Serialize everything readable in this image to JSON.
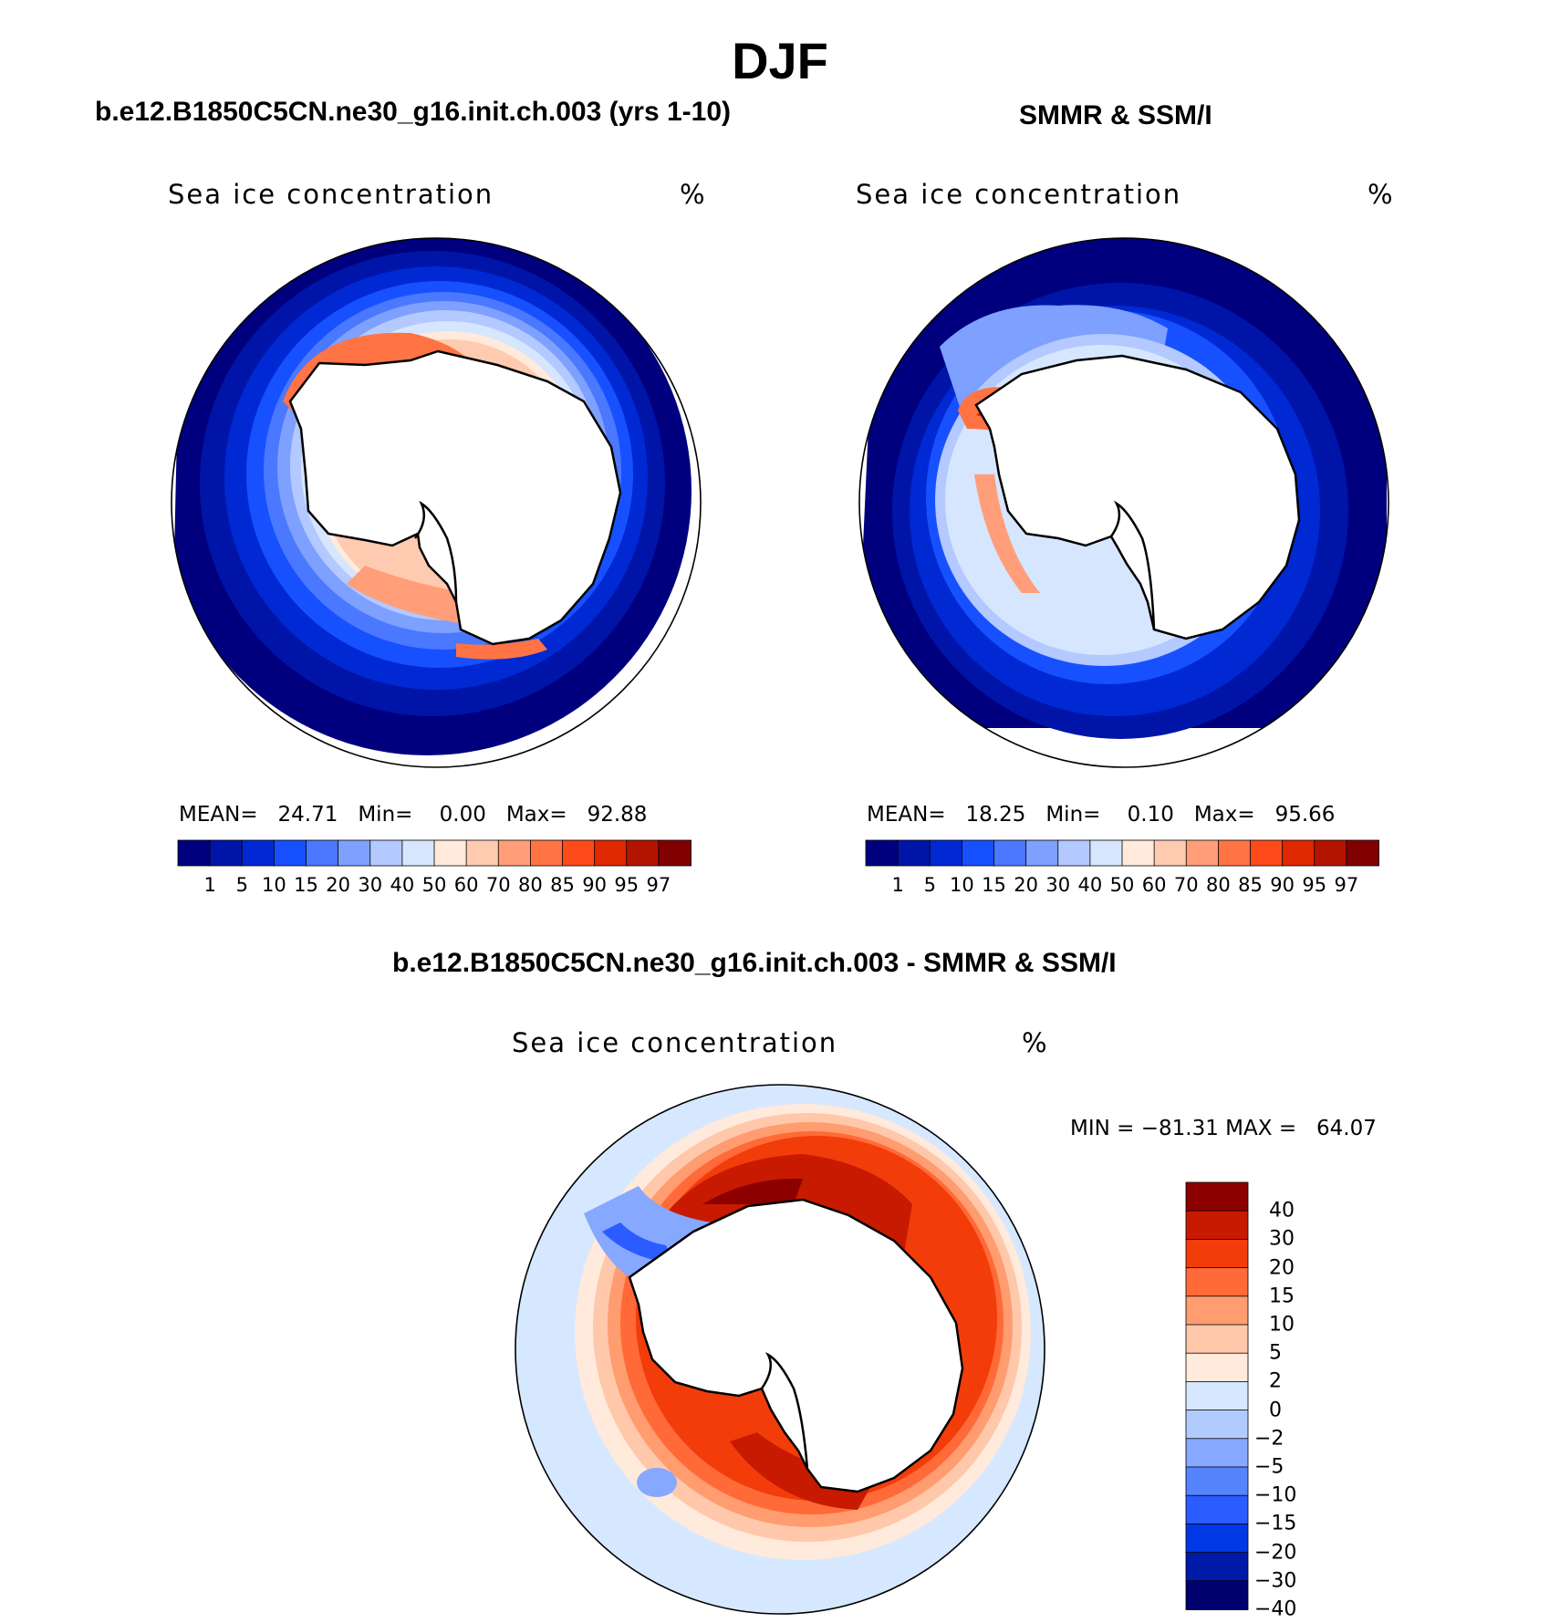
{
  "main_title": "DJF",
  "colors": {
    "seq": [
      "#00007f",
      "#0015a8",
      "#0029d4",
      "#1750ff",
      "#4a78ff",
      "#7ea0ff",
      "#b3c9ff",
      "#d6e6ff",
      "#ffeadc",
      "#ffcbb0",
      "#ff9e78",
      "#ff7345",
      "#ff4a1a",
      "#e02800",
      "#b31400",
      "#800000"
    ],
    "diff": [
      "#00006e",
      "#001aa8",
      "#0038e6",
      "#2a5cff",
      "#5684ff",
      "#86a8ff",
      "#b2cbff",
      "#d6e8ff",
      "#ffeadc",
      "#ffc8aa",
      "#ff9c70",
      "#ff6a38",
      "#f23c0a",
      "#c81a00",
      "#8c0000"
    ]
  },
  "chart_data": [
    {
      "type": "heatmap",
      "panel": "model",
      "title": "b.e12.B1850C5CN.ne30_g16.init.ch.003 (yrs 1-10)",
      "subtitle": "Sea ice concentration",
      "units": "%",
      "stats": {
        "mean_label": "MEAN=",
        "mean": "24.71",
        "min_label": "Min=",
        "min": "0.00",
        "max_label": "Max=",
        "max": "92.88"
      },
      "levels": [
        "1",
        "5",
        "10",
        "15",
        "20",
        "30",
        "40",
        "50",
        "60",
        "70",
        "80",
        "85",
        "90",
        "95",
        "97"
      ],
      "projection": "south polar stereographic"
    },
    {
      "type": "heatmap",
      "panel": "observations",
      "title": "SMMR & SSM/I",
      "subtitle": "Sea ice concentration",
      "units": "%",
      "stats": {
        "mean_label": "MEAN=",
        "mean": "18.25",
        "min_label": "Min=",
        "min": "0.10",
        "max_label": "Max=",
        "max": "95.66"
      },
      "levels": [
        "1",
        "5",
        "10",
        "15",
        "20",
        "30",
        "40",
        "50",
        "60",
        "70",
        "80",
        "85",
        "90",
        "95",
        "97"
      ],
      "projection": "south polar stereographic"
    },
    {
      "type": "heatmap",
      "panel": "difference",
      "title": "b.e12.B1850C5CN.ne30_g16.init.ch.003 - SMMR & SSM/I",
      "subtitle": "Sea ice concentration",
      "units": "%",
      "stats": {
        "min_label": "MIN =",
        "min": "−81.31",
        "max_label": "MAX =",
        "max": "64.07"
      },
      "levels": [
        "40",
        "30",
        "20",
        "15",
        "10",
        "5",
        "2",
        "0",
        "−2",
        "−5",
        "−10",
        "−15",
        "−20",
        "−30",
        "−40"
      ],
      "projection": "south polar stereographic"
    }
  ]
}
